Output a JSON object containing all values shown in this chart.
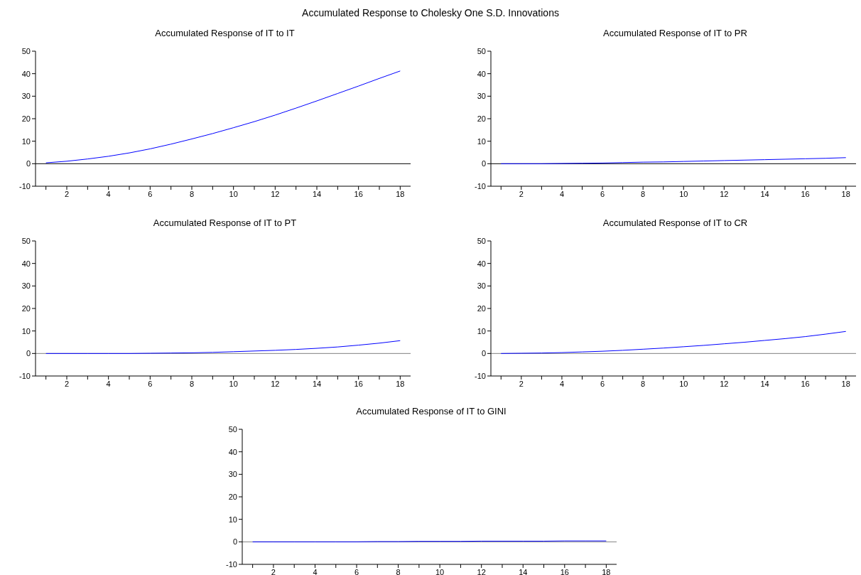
{
  "chart_data": [
    {
      "type": "line",
      "title": "Accumulated Response to Cholesky One S.D. Innovations",
      "subtitle": "Accumulated Response of IT to IT",
      "x": [
        1,
        2,
        3,
        4,
        5,
        6,
        7,
        8,
        9,
        10,
        11,
        12,
        13,
        14,
        15,
        16,
        17,
        18
      ],
      "series": [
        {
          "color": "#0000ff",
          "values": [
            0.4,
            1.1,
            2.1,
            3.3,
            4.8,
            6.6,
            8.7,
            11.0,
            13.4,
            16.0,
            18.7,
            21.6,
            24.7,
            27.9,
            31.2,
            34.5,
            37.9,
            41.2
          ]
        }
      ],
      "xlim": [
        0.5,
        18.5
      ],
      "xticks": [
        {
          "value": 1,
          "label": null
        },
        2,
        {
          "value": 3,
          "label": null
        },
        4,
        {
          "value": 5,
          "label": null
        },
        6,
        {
          "value": 7,
          "label": null
        },
        8,
        {
          "value": 9,
          "label": null
        },
        10,
        {
          "value": 11,
          "label": null
        },
        12,
        {
          "value": 13,
          "label": null
        },
        14,
        {
          "value": 15,
          "label": null
        },
        16,
        {
          "value": 17,
          "label": null
        },
        18
      ],
      "ylim": [
        -10,
        50
      ],
      "yticks": [
        -10,
        0,
        10,
        20,
        30,
        40,
        50
      ],
      "marker": "none",
      "line_style": "solid",
      "ref_lines": [
        {
          "axis": "y",
          "value": 0,
          "color": "#000000"
        }
      ]
    },
    {
      "type": "line",
      "title": "Accumulated Response of IT to PR",
      "x": [
        1,
        2,
        3,
        4,
        5,
        6,
        7,
        8,
        9,
        10,
        11,
        12,
        13,
        14,
        15,
        16,
        17,
        18
      ],
      "series": [
        {
          "color": "#0000ff",
          "values": [
            0,
            0,
            0,
            0.1,
            0.2,
            0.3,
            0.5,
            0.7,
            0.8,
            1.0,
            1.2,
            1.4,
            1.6,
            1.8,
            2.0,
            2.2,
            2.4,
            2.7
          ]
        }
      ],
      "xlim": [
        0.5,
        18.5
      ],
      "xticks": [
        {
          "value": 1,
          "label": null
        },
        2,
        {
          "value": 3,
          "label": null
        },
        4,
        {
          "value": 5,
          "label": null
        },
        6,
        {
          "value": 7,
          "label": null
        },
        8,
        {
          "value": 9,
          "label": null
        },
        10,
        {
          "value": 11,
          "label": null
        },
        12,
        {
          "value": 13,
          "label": null
        },
        14,
        {
          "value": 15,
          "label": null
        },
        16,
        {
          "value": 17,
          "label": null
        },
        18
      ],
      "ylim": [
        -10,
        50
      ],
      "yticks": [
        -10,
        0,
        10,
        20,
        30,
        40,
        50
      ],
      "marker": "none",
      "line_style": "solid",
      "ref_lines": [
        {
          "axis": "y",
          "value": 0,
          "color": "#000000"
        }
      ]
    },
    {
      "type": "line",
      "title": "Accumulated Response of IT to PT",
      "x": [
        1,
        2,
        3,
        4,
        5,
        6,
        7,
        8,
        9,
        10,
        11,
        12,
        13,
        14,
        15,
        16,
        17,
        18
      ],
      "series": [
        {
          "color": "#0000ff",
          "values": [
            0,
            0,
            0,
            0,
            0,
            0.1,
            0.2,
            0.3,
            0.5,
            0.8,
            1.1,
            1.4,
            1.8,
            2.3,
            2.9,
            3.7,
            4.6,
            5.7
          ]
        }
      ],
      "xlim": [
        0.5,
        18.5
      ],
      "xticks": [
        {
          "value": 1,
          "label": null
        },
        2,
        {
          "value": 3,
          "label": null
        },
        4,
        {
          "value": 5,
          "label": null
        },
        6,
        {
          "value": 7,
          "label": null
        },
        8,
        {
          "value": 9,
          "label": null
        },
        10,
        {
          "value": 11,
          "label": null
        },
        12,
        {
          "value": 13,
          "label": null
        },
        14,
        {
          "value": 15,
          "label": null
        },
        16,
        {
          "value": 17,
          "label": null
        },
        18
      ],
      "ylim": [
        -10,
        50
      ],
      "yticks": [
        -10,
        0,
        10,
        20,
        30,
        40,
        50
      ],
      "marker": "none",
      "line_style": "solid",
      "ref_lines": [
        {
          "axis": "y",
          "value": 0,
          "color": "#808080"
        }
      ]
    },
    {
      "type": "line",
      "title": "Accumulated Response of IT to CR",
      "x": [
        1,
        2,
        3,
        4,
        5,
        6,
        7,
        8,
        9,
        10,
        11,
        12,
        13,
        14,
        15,
        16,
        17,
        18
      ],
      "series": [
        {
          "color": "#0000ff",
          "values": [
            0,
            0.1,
            0.2,
            0.4,
            0.7,
            1.0,
            1.4,
            1.9,
            2.4,
            3.0,
            3.6,
            4.3,
            5.0,
            5.8,
            6.6,
            7.5,
            8.6,
            9.8
          ]
        }
      ],
      "xlim": [
        0.5,
        18.5
      ],
      "xticks": [
        {
          "value": 1,
          "label": null
        },
        2,
        {
          "value": 3,
          "label": null
        },
        4,
        {
          "value": 5,
          "label": null
        },
        6,
        {
          "value": 7,
          "label": null
        },
        8,
        {
          "value": 9,
          "label": null
        },
        10,
        {
          "value": 11,
          "label": null
        },
        12,
        {
          "value": 13,
          "label": null
        },
        14,
        {
          "value": 15,
          "label": null
        },
        16,
        {
          "value": 17,
          "label": null
        },
        18
      ],
      "ylim": [
        -10,
        50
      ],
      "yticks": [
        -10,
        0,
        10,
        20,
        30,
        40,
        50
      ],
      "marker": "none",
      "line_style": "solid",
      "ref_lines": [
        {
          "axis": "y",
          "value": 0,
          "color": "#808080"
        }
      ]
    },
    {
      "type": "line",
      "title": "Accumulated Response of IT to GINI",
      "x": [
        1,
        2,
        3,
        4,
        5,
        6,
        7,
        8,
        9,
        10,
        11,
        12,
        13,
        14,
        15,
        16,
        17,
        18
      ],
      "series": [
        {
          "color": "#0000ff",
          "values": [
            0,
            0,
            0,
            0,
            0,
            0,
            0.1,
            0.1,
            0.2,
            0.2,
            0.2,
            0.3,
            0.3,
            0.3,
            0.3,
            0.4,
            0.4,
            0.4
          ]
        }
      ],
      "xlim": [
        0.5,
        18.5
      ],
      "xticks": [
        {
          "value": 1,
          "label": null
        },
        2,
        {
          "value": 3,
          "label": null
        },
        4,
        {
          "value": 5,
          "label": null
        },
        6,
        {
          "value": 7,
          "label": null
        },
        8,
        {
          "value": 9,
          "label": null
        },
        10,
        {
          "value": 11,
          "label": null
        },
        12,
        {
          "value": 13,
          "label": null
        },
        14,
        {
          "value": 15,
          "label": null
        },
        16,
        {
          "value": 17,
          "label": null
        },
        18
      ],
      "ylim": [
        -10,
        50
      ],
      "yticks": [
        -10,
        0,
        10,
        20,
        30,
        40,
        50
      ],
      "marker": "none",
      "line_style": "solid",
      "ref_lines": [
        {
          "axis": "y",
          "value": 0,
          "color": "#808080"
        }
      ]
    }
  ]
}
